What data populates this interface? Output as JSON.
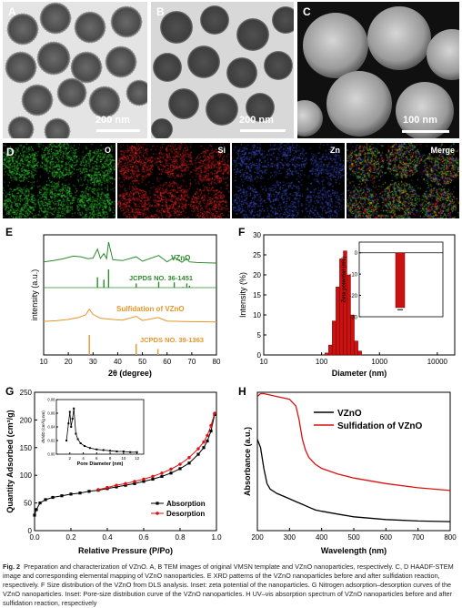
{
  "panels": {
    "A": {
      "label": "A",
      "scale_bar": "200 nm"
    },
    "B": {
      "label": "B",
      "scale_bar": "200 nm"
    },
    "C": {
      "label": "C",
      "scale_bar": "100 nm"
    },
    "D": {
      "label": "D",
      "maps": [
        "O",
        "Si",
        "Zn",
        "Merge"
      ]
    },
    "E": {
      "label": "E"
    },
    "F": {
      "label": "F"
    },
    "G": {
      "label": "G"
    },
    "H": {
      "label": "H"
    }
  },
  "colors": {
    "vzno_green": "#2e8b2e",
    "sulf_orange": "#e8952a",
    "dls_red": "#cc1111",
    "series_black": "#000000",
    "series_red": "#dd1111"
  },
  "chart_data": [
    {
      "id": "E",
      "type": "line",
      "xlabel": "2θ (degree)",
      "ylabel": "intensity (a.u.)",
      "xlim": [
        10,
        80
      ],
      "x_ticks": [
        "10",
        "20",
        "30",
        "40",
        "50",
        "60",
        "70",
        "80"
      ],
      "series": [
        {
          "name": "VZnO",
          "x": [
            10,
            14,
            18,
            22,
            25,
            28,
            30,
            31.8,
            33,
            34.4,
            35.5,
            36.3,
            38,
            42,
            47.5,
            50,
            56.6,
            60,
            62.9,
            66,
            68,
            69,
            72,
            76,
            80
          ],
          "y": [
            0.45,
            0.55,
            0.7,
            0.9,
            0.85,
            0.7,
            0.75,
            1.45,
            0.72,
            1.1,
            0.7,
            2.0,
            0.62,
            0.55,
            0.85,
            0.5,
            0.95,
            0.45,
            0.8,
            0.42,
            0.7,
            0.45,
            0.4,
            0.38,
            0.36
          ]
        },
        {
          "name": "Sulfidation of VZnO",
          "x": [
            10,
            15,
            20,
            24,
            27,
            28.5,
            30,
            33,
            38,
            42,
            47.5,
            50,
            56.3,
            60,
            65,
            70,
            75,
            80
          ],
          "y": [
            0.35,
            0.4,
            0.5,
            0.65,
            0.85,
            1.3,
            0.9,
            0.6,
            0.5,
            0.45,
            0.75,
            0.42,
            0.65,
            0.38,
            0.35,
            0.33,
            0.32,
            0.3
          ]
        }
      ],
      "references": [
        {
          "name": "JCPDS NO. 36-1451",
          "positions": [
            31.8,
            34.4,
            36.3,
            47.5,
            56.6,
            62.9,
            66.4,
            68.0,
            69.1
          ],
          "intensities": [
            57,
            44,
            100,
            23,
            32,
            29,
            4,
            23,
            11
          ]
        },
        {
          "name": "JCPDS NO. 39-1363",
          "positions": [
            28.5,
            47.5,
            56.3
          ],
          "intensities": [
            100,
            55,
            30
          ]
        }
      ]
    },
    {
      "id": "F",
      "type": "bar",
      "xlabel": "Diameter (nm)",
      "ylabel": "Intensity (%)",
      "xscale": "log",
      "xlim": [
        10,
        20000
      ],
      "ylim": [
        0,
        30
      ],
      "x_ticks": [
        "10",
        "100",
        "1000",
        "10000"
      ],
      "y_ticks": [
        "0",
        "5",
        "10",
        "15",
        "20",
        "25",
        "30"
      ],
      "bins": [
        {
          "x": 122,
          "y": 0.5
        },
        {
          "x": 142,
          "y": 2.5
        },
        {
          "x": 164,
          "y": 8.5
        },
        {
          "x": 190,
          "y": 17
        },
        {
          "x": 220,
          "y": 24
        },
        {
          "x": 255,
          "y": 26
        },
        {
          "x": 295,
          "y": 20
        },
        {
          "x": 342,
          "y": 10
        },
        {
          "x": 396,
          "y": 3.5
        },
        {
          "x": 458,
          "y": 1
        }
      ],
      "inset": {
        "type": "bar",
        "ylabel": "Zeta potential (mV)",
        "ylim": [
          -30,
          5
        ],
        "y_ticks": [
          "0",
          "-10",
          "-20",
          "-30"
        ],
        "value": -25.7
      }
    },
    {
      "id": "G",
      "type": "line",
      "xlabel": "Relative Pressure (P/Po)",
      "ylabel": "Quantity Adsorbed (cm³/g)",
      "xlim": [
        0.0,
        1.0
      ],
      "ylim": [
        0,
        250
      ],
      "x_ticks": [
        "0.0",
        "0.2",
        "0.4",
        "0.6",
        "0.8",
        "1.0"
      ],
      "y_ticks": [
        "0",
        "50",
        "100",
        "150",
        "200",
        "250"
      ],
      "legend": "bottom-right",
      "series": [
        {
          "name": "Absorption",
          "x": [
            0.0,
            0.01,
            0.03,
            0.06,
            0.1,
            0.15,
            0.2,
            0.25,
            0.3,
            0.35,
            0.4,
            0.45,
            0.5,
            0.55,
            0.6,
            0.65,
            0.7,
            0.75,
            0.8,
            0.85,
            0.9,
            0.93,
            0.95,
            0.97,
            0.99
          ],
          "y": [
            28,
            38,
            50,
            56,
            60,
            63,
            66,
            68,
            71,
            73,
            76,
            79,
            82,
            85,
            89,
            93,
            98,
            104,
            112,
            122,
            138,
            150,
            162,
            180,
            210
          ]
        },
        {
          "name": "Desorption",
          "x": [
            0.99,
            0.97,
            0.95,
            0.93,
            0.9,
            0.85,
            0.8,
            0.75,
            0.7,
            0.65,
            0.6,
            0.55,
            0.5,
            0.45,
            0.4,
            0.35
          ],
          "y": [
            212,
            190,
            172,
            160,
            148,
            132,
            120,
            111,
            104,
            98,
            93,
            89,
            85,
            82,
            78,
            74
          ]
        }
      ],
      "inset": {
        "type": "line",
        "xlabel": "Pore Diameter (nm)",
        "ylabel": "dV/dD (cm³/g nm)",
        "x_ticks": [
          "2",
          "4",
          "6",
          "8",
          "10",
          "12"
        ],
        "y_ticks": [
          "0.00",
          "0.02",
          "0.04",
          "0.06",
          "0.08"
        ],
        "x": [
          1.5,
          1.8,
          2.0,
          2.2,
          2.4,
          2.6,
          2.9,
          3.2,
          3.6,
          4.2,
          5.0,
          6.0,
          7.0,
          8.0,
          9.0,
          10.0,
          11.0,
          12.0
        ],
        "y": [
          0.02,
          0.045,
          0.062,
          0.04,
          0.052,
          0.067,
          0.03,
          0.022,
          0.016,
          0.012,
          0.009,
          0.007,
          0.006,
          0.005,
          0.004,
          0.004,
          0.003,
          0.003
        ]
      }
    },
    {
      "id": "H",
      "type": "line",
      "xlabel": "Wavelength (nm)",
      "ylabel": "Absorbance (a.u.)",
      "xlim": [
        200,
        800
      ],
      "x_ticks": [
        "200",
        "300",
        "400",
        "500",
        "600",
        "700",
        "800"
      ],
      "legend": "top-right",
      "series": [
        {
          "name": "VZnO",
          "x": [
            200,
            210,
            220,
            230,
            240,
            260,
            280,
            300,
            320,
            340,
            360,
            380,
            400,
            450,
            500,
            600,
            700,
            800
          ],
          "y": [
            0.66,
            0.6,
            0.45,
            0.34,
            0.3,
            0.27,
            0.25,
            0.23,
            0.21,
            0.19,
            0.17,
            0.15,
            0.14,
            0.12,
            0.1,
            0.08,
            0.07,
            0.065
          ]
        },
        {
          "name": "Sulfidation of VZnO",
          "x": [
            200,
            210,
            220,
            240,
            260,
            280,
            300,
            320,
            330,
            340,
            350,
            360,
            380,
            400,
            450,
            500,
            600,
            700,
            800
          ],
          "y": [
            0.97,
            0.99,
            0.99,
            0.98,
            0.97,
            0.96,
            0.95,
            0.9,
            0.8,
            0.66,
            0.58,
            0.53,
            0.48,
            0.45,
            0.41,
            0.38,
            0.34,
            0.31,
            0.29
          ]
        }
      ]
    }
  ],
  "caption": {
    "fig_label": "Fig. 2",
    "text": "Preparation and characterization of VZnO. A, B TEM images of original VMSN template and VZnO nanoparticles, respectively. C, D HAADF-STEM image and corresponding elemental mapping of VZnO nanoparticles. E XRD patterns of the VZnO nanoparticles before and after sulfidation reaction, respectively. F Size distribution of the VZnO from DLS analysis. Inset: zeta potential of the nanoparticles. G Nitrogen adsorption–desorption curves of the VZnO nanoparticles. Inset: Pore-size distribution curve of the VZnO nanoparticles. H UV–vis absorption spectrum of VZnO nanoparticles before and after sulfidation reaction, respectively"
  }
}
